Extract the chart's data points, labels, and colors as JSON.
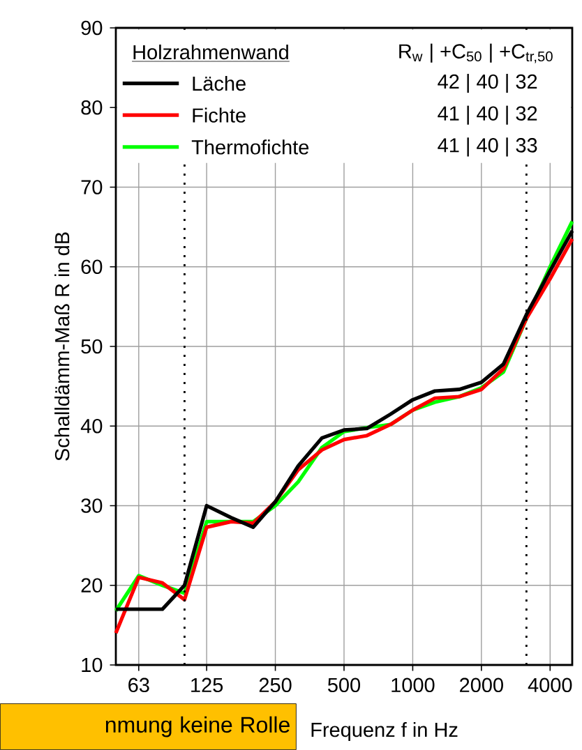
{
  "chart_data": {
    "type": "line",
    "xlabel": "Frequenz f in Hz",
    "ylabel": "Schalldämm-Maß R in dB",
    "legend_title": "Holzrahmenwand",
    "x": [
      50,
      63,
      80,
      100,
      125,
      160,
      200,
      250,
      315,
      400,
      500,
      630,
      800,
      1000,
      1250,
      1600,
      2000,
      2500,
      3150,
      4000,
      5000
    ],
    "series": [
      {
        "name": "Läche",
        "color": "#000000",
        "values": [
          17,
          17,
          17,
          20,
          30,
          28.5,
          27.3,
          30.5,
          35,
          38.5,
          39.5,
          39.7,
          41.5,
          43.3,
          44.4,
          44.6,
          45.5,
          47.8,
          54,
          59.5,
          64.5
        ]
      },
      {
        "name": "Fichte",
        "color": "#ff0000",
        "values": [
          14,
          21,
          20.3,
          18.2,
          27.3,
          28,
          27.8,
          30.5,
          34.5,
          37,
          38.3,
          38.8,
          40.2,
          42,
          43.5,
          43.7,
          44.6,
          47.2,
          53.5,
          58.5,
          63.5
        ]
      },
      {
        "name": "Thermofichte",
        "color": "#00ff00",
        "values": [
          16.8,
          21.2,
          20,
          19,
          28,
          28,
          28,
          30,
          33,
          37.3,
          39.3,
          39.8,
          40.2,
          42,
          43,
          43.7,
          44.8,
          46.8,
          53.5,
          60,
          65.7
        ]
      }
    ],
    "xlim": [
      50,
      5000
    ],
    "ylim": [
      10,
      90
    ],
    "xticks": [
      63,
      125,
      250,
      500,
      1000,
      2000,
      4000
    ],
    "yticks": [
      10,
      20,
      30,
      40,
      50,
      60,
      70,
      80,
      90
    ],
    "log": "x",
    "grid": true,
    "legend": "top",
    "marker": "none",
    "line_style": "solid",
    "ref_lines": [
      {
        "axis": "x",
        "value": 100,
        "color": "#000000",
        "line_style": "dotted"
      },
      {
        "axis": "x",
        "value": 3150,
        "color": "#000000",
        "line_style": "dotted"
      }
    ],
    "annotations": [
      "nmung keine Rolle",
      "R$_{w}$ | +C$_{50}$ | +C$_{tr,50}$",
      "42 |  40  |  32",
      "41 |  40  |  32",
      "41 |  40  |  33"
    ]
  }
}
